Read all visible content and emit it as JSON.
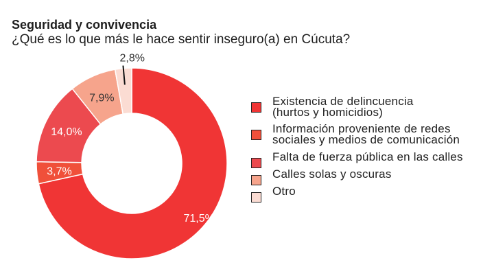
{
  "header": {
    "title": "Seguridad y convivencia",
    "subtitle": "¿Qué es lo que más le hace sentir inseguro(a) en Cúcuta?"
  },
  "chart_data": {
    "type": "pie",
    "title": "Seguridad y convivencia",
    "subtitle": "¿Qué es lo que más le hace sentir inseguro(a) en Cúcuta?",
    "legend_position": "right",
    "slices": [
      {
        "label": "Existencia de delincuencia\n(hurtos y homicidios)",
        "value": 71.5,
        "display": "71,5%",
        "color": "#f03535"
      },
      {
        "label": "Información proveniente de redes\nsociales y medios de comunicación",
        "value": 3.7,
        "display": "3,7%",
        "color": "#f0503a"
      },
      {
        "label": "Falta de fuerza pública en las calles",
        "value": 14.0,
        "display": "14,0%",
        "color": "#ec4a4f"
      },
      {
        "label": "Calles solas y oscuras",
        "value": 7.9,
        "display": "7,9%",
        "color": "#f6a48c"
      },
      {
        "label": "Otro",
        "value": 2.8,
        "display": "2,8%",
        "color": "#fbdcd3"
      }
    ]
  }
}
